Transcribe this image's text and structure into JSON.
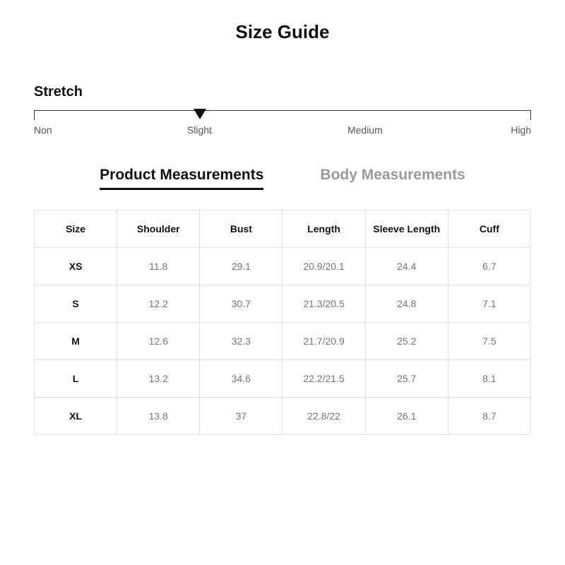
{
  "title": "Size Guide",
  "stretch": {
    "label": "Stretch",
    "stops": [
      "Non",
      "Slight",
      "Medium",
      "High"
    ],
    "stop_positions_pct": [
      0,
      33.3,
      66.6,
      100
    ],
    "marker_position_pct": 33.3,
    "track_color": "#333333",
    "marker_color": "#111111",
    "label_color": "#555555"
  },
  "tabs": [
    {
      "label": "Product Measurements",
      "active": true
    },
    {
      "label": "Body Measurements",
      "active": false
    }
  ],
  "table": {
    "type": "table",
    "columns": [
      "Size",
      "Shoulder",
      "Bust",
      "Length",
      "Sleeve Length",
      "Cuff"
    ],
    "rows": [
      [
        "XS",
        "11.8",
        "29.1",
        "20.9/20.1",
        "24.4",
        "6.7"
      ],
      [
        "S",
        "12.2",
        "30.7",
        "21.3/20.5",
        "24.8",
        "7.1"
      ],
      [
        "M",
        "12.6",
        "32.3",
        "21.7/20.9",
        "25.2",
        "7.5"
      ],
      [
        "L",
        "13.2",
        "34.6",
        "22.2/21.5",
        "25.7",
        "8.1"
      ],
      [
        "XL",
        "13.8",
        "37",
        "22.8/22",
        "26.1",
        "8.7"
      ]
    ],
    "border_color": "#e2e2e2",
    "header_color": "#111111",
    "value_color": "#777777",
    "background_color": "#ffffff",
    "header_fontsize": 14,
    "cell_fontsize": 14
  },
  "colors": {
    "background": "#ffffff",
    "text_primary": "#111111",
    "text_secondary": "#777777",
    "tab_inactive": "#9a9a9a"
  }
}
